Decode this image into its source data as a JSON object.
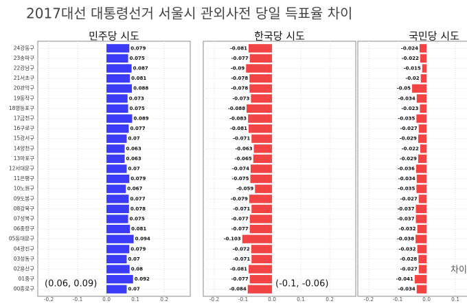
{
  "chart_data": {
    "type": "hbar-facets",
    "title": "2017대선 대통령선거  서울시 관외사전 당일 득표율 차이",
    "categories": [
      "24강동구",
      "23송파구",
      "22강남구",
      "21서초구",
      "20관악구",
      "19동작구",
      "18영등포구",
      "17금천구",
      "16구로구",
      "15강서구",
      "14양천구",
      "13마포구",
      "12서대문구",
      "11은평구",
      "10노원구",
      "09도봉구",
      "08강북구",
      "07성북구",
      "06중랑구",
      "05동대문구",
      "04광진구",
      "03성동구",
      "02용산구",
      "01중구",
      "00종로구"
    ],
    "xlim": [
      -0.238,
      0.29
    ],
    "xticks": [
      -0.2,
      -0.1,
      {
        "value": 0,
        "label": "0.0"
      },
      0.1,
      0.2
    ],
    "grid": true,
    "panels": [
      {
        "title": "민주당 시도",
        "color": "#3b3bf6",
        "annotation": "(0.06, 0.09)",
        "values": [
          0.079,
          0.075,
          0.087,
          0.081,
          0.088,
          0.073,
          0.075,
          0.089,
          0.077,
          0.07,
          0.063,
          0.063,
          0.07,
          0.079,
          0.067,
          0.077,
          0.078,
          0.075,
          0.081,
          0.094,
          0.079,
          0.07,
          0.08,
          0.092,
          0.07
        ]
      },
      {
        "title": "한국당 시도",
        "color": "#f24444",
        "annotation": "(-0.1, -0.06)",
        "values": [
          -0.081,
          -0.077,
          -0.09,
          -0.078,
          -0.078,
          -0.073,
          -0.088,
          -0.083,
          -0.081,
          -0.071,
          -0.063,
          -0.065,
          -0.074,
          -0.075,
          -0.059,
          -0.079,
          -0.071,
          -0.077,
          -0.077,
          -0.103,
          -0.072,
          -0.071,
          -0.081,
          -0.077,
          -0.084
        ]
      },
      {
        "title": "국민당 시도",
        "color": "#f24444",
        "annotation": "차이",
        "values": [
          -0.024,
          -0.022,
          -0.015,
          -0.02,
          -0.05,
          -0.034,
          -0.023,
          -0.035,
          -0.027,
          -0.029,
          -0.022,
          -0.029,
          -0.036,
          -0.034,
          -0.035,
          -0.027,
          -0.037,
          -0.037,
          -0.032,
          -0.038,
          -0.032,
          -0.028,
          -0.027,
          -0.041,
          -0.034
        ]
      }
    ]
  }
}
